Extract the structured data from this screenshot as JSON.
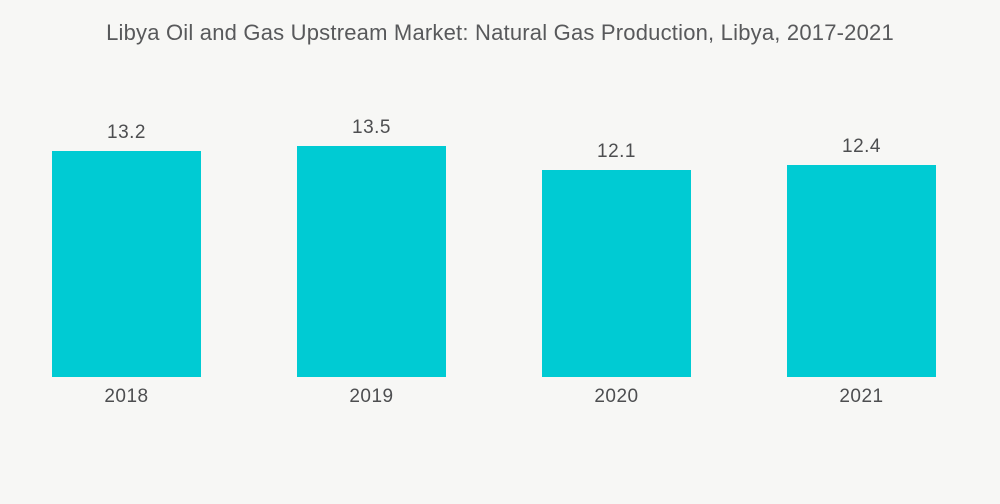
{
  "chart_data": {
    "type": "bar",
    "title": "Libya Oil and Gas Upstream Market: Natural Gas Production, Libya, 2017-2021",
    "categories": [
      "2018",
      "2019",
      "2020",
      "2021"
    ],
    "values": [
      13.2,
      13.5,
      12.1,
      12.4
    ],
    "xlabel": "",
    "ylabel": "",
    "ylim": [
      0,
      13.5
    ],
    "grid": false,
    "legend": "none",
    "axes_shown": false,
    "value_labels_shown": true,
    "colors": {
      "bar": "#00CBD3",
      "background": "#F7F7F5",
      "title_text": "#58595B",
      "label_text": "#4D4E50"
    }
  }
}
